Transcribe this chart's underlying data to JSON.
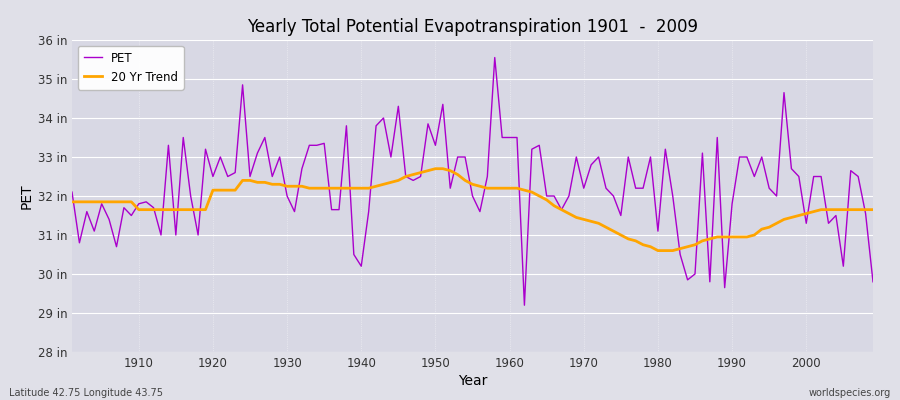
{
  "title": "Yearly Total Potential Evapotranspiration 1901  -  2009",
  "xlabel": "Year",
  "ylabel": "PET",
  "bottom_left": "Latitude 42.75 Longitude 43.75",
  "bottom_right": "worldspecies.org",
  "ylim": [
    28,
    36
  ],
  "ytick_labels": [
    "28 in",
    "29 in",
    "30 in",
    "31 in",
    "32 in",
    "33 in",
    "34 in",
    "35 in",
    "36 in"
  ],
  "ytick_values": [
    28,
    29,
    30,
    31,
    32,
    33,
    34,
    35,
    36
  ],
  "xlim": [
    1901,
    2009
  ],
  "xtick_values": [
    1910,
    1920,
    1930,
    1940,
    1950,
    1960,
    1970,
    1980,
    1990,
    2000
  ],
  "pet_color": "#AA00CC",
  "trend_color": "#FFA500",
  "fig_bg_color": "#E0E0E8",
  "plot_bg_color": "#D8D8E4",
  "grid_color": "#FFFFFF",
  "pet_years": [
    1901,
    1902,
    1903,
    1904,
    1905,
    1906,
    1907,
    1908,
    1909,
    1910,
    1911,
    1912,
    1913,
    1914,
    1915,
    1916,
    1917,
    1918,
    1919,
    1920,
    1921,
    1922,
    1923,
    1924,
    1925,
    1926,
    1927,
    1928,
    1929,
    1930,
    1931,
    1932,
    1933,
    1934,
    1935,
    1936,
    1937,
    1938,
    1939,
    1940,
    1941,
    1942,
    1943,
    1944,
    1945,
    1946,
    1947,
    1948,
    1949,
    1950,
    1951,
    1952,
    1953,
    1954,
    1955,
    1956,
    1957,
    1958,
    1959,
    1960,
    1961,
    1962,
    1963,
    1964,
    1965,
    1966,
    1967,
    1968,
    1969,
    1970,
    1971,
    1972,
    1973,
    1974,
    1975,
    1976,
    1977,
    1978,
    1979,
    1980,
    1981,
    1982,
    1983,
    1984,
    1985,
    1986,
    1987,
    1988,
    1989,
    1990,
    1991,
    1992,
    1993,
    1994,
    1995,
    1996,
    1997,
    1998,
    1999,
    2000,
    2001,
    2002,
    2003,
    2004,
    2005,
    2006,
    2007,
    2008,
    2009
  ],
  "pet_values": [
    32.1,
    30.8,
    31.6,
    31.1,
    31.8,
    31.4,
    30.7,
    31.7,
    31.5,
    31.8,
    31.85,
    31.7,
    31.0,
    33.3,
    31.0,
    33.5,
    32.0,
    31.0,
    33.2,
    32.5,
    33.0,
    32.5,
    32.6,
    34.85,
    32.5,
    33.1,
    33.5,
    32.5,
    33.0,
    32.0,
    31.6,
    32.7,
    33.3,
    33.3,
    33.35,
    31.65,
    31.65,
    33.8,
    30.5,
    30.2,
    31.6,
    33.8,
    34.0,
    33.0,
    34.3,
    32.5,
    32.4,
    32.5,
    33.85,
    33.3,
    34.35,
    32.2,
    33.0,
    33.0,
    32.0,
    31.6,
    32.5,
    35.55,
    33.5,
    33.5,
    33.5,
    29.2,
    33.2,
    33.3,
    32.0,
    32.0,
    31.65,
    32.0,
    33.0,
    32.2,
    32.8,
    33.0,
    32.2,
    32.0,
    31.5,
    33.0,
    32.2,
    32.2,
    33.0,
    31.1,
    33.2,
    32.0,
    30.5,
    29.85,
    30.0,
    33.1,
    29.8,
    33.5,
    29.65,
    31.8,
    33.0,
    33.0,
    32.5,
    33.0,
    32.2,
    32.0,
    34.65,
    32.7,
    32.5,
    31.3,
    32.5,
    32.5,
    31.3,
    31.5,
    30.2,
    32.65,
    32.5,
    31.55,
    29.8
  ],
  "trend_years": [
    1901,
    1902,
    1903,
    1904,
    1905,
    1906,
    1907,
    1908,
    1909,
    1910,
    1911,
    1912,
    1913,
    1914,
    1915,
    1916,
    1917,
    1918,
    1919,
    1920,
    1921,
    1922,
    1923,
    1924,
    1925,
    1926,
    1927,
    1928,
    1929,
    1930,
    1931,
    1932,
    1933,
    1934,
    1935,
    1936,
    1937,
    1938,
    1939,
    1940,
    1941,
    1942,
    1943,
    1944,
    1945,
    1946,
    1947,
    1948,
    1949,
    1950,
    1951,
    1952,
    1953,
    1954,
    1955,
    1956,
    1957,
    1958,
    1959,
    1960,
    1961,
    1962,
    1963,
    1964,
    1965,
    1966,
    1967,
    1968,
    1969,
    1970,
    1971,
    1972,
    1973,
    1974,
    1975,
    1976,
    1977,
    1978,
    1979,
    1980,
    1981,
    1982,
    1983,
    1984,
    1985,
    1986,
    1987,
    1988,
    1989,
    1990,
    1991,
    1992,
    1993,
    1994,
    1995,
    1996,
    1997,
    1998,
    1999,
    2000,
    2001,
    2002,
    2003,
    2004,
    2005,
    2006,
    2007,
    2008,
    2009
  ],
  "trend_values": [
    31.85,
    31.85,
    31.85,
    31.85,
    31.85,
    31.85,
    31.85,
    31.85,
    31.85,
    31.65,
    31.65,
    31.65,
    31.65,
    31.65,
    31.65,
    31.65,
    31.65,
    31.65,
    31.65,
    32.15,
    32.15,
    32.15,
    32.15,
    32.4,
    32.4,
    32.35,
    32.35,
    32.3,
    32.3,
    32.25,
    32.25,
    32.25,
    32.2,
    32.2,
    32.2,
    32.2,
    32.2,
    32.2,
    32.2,
    32.2,
    32.2,
    32.25,
    32.3,
    32.35,
    32.4,
    32.5,
    32.55,
    32.6,
    32.65,
    32.7,
    32.7,
    32.65,
    32.55,
    32.4,
    32.3,
    32.25,
    32.2,
    32.2,
    32.2,
    32.2,
    32.2,
    32.15,
    32.1,
    32.0,
    31.9,
    31.75,
    31.65,
    31.55,
    31.45,
    31.4,
    31.35,
    31.3,
    31.2,
    31.1,
    31.0,
    30.9,
    30.85,
    30.75,
    30.7,
    30.6,
    30.6,
    30.6,
    30.65,
    30.7,
    30.75,
    30.85,
    30.9,
    30.95,
    30.95,
    30.95,
    30.95,
    30.95,
    31.0,
    31.15,
    31.2,
    31.3,
    31.4,
    31.45,
    31.5,
    31.55,
    31.6,
    31.65,
    31.65,
    31.65,
    31.65,
    31.65,
    31.65,
    31.65,
    31.65
  ]
}
